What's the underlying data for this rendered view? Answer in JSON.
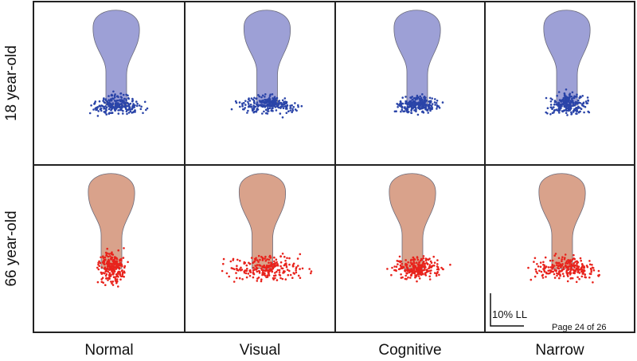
{
  "rows": [
    "18 year-old",
    "66 year-old"
  ],
  "columns": [
    "Normal",
    "Visual",
    "Cognitive",
    "Narrow"
  ],
  "scale_bar": "10% LL",
  "footer": "Page 24 of 26"
}
